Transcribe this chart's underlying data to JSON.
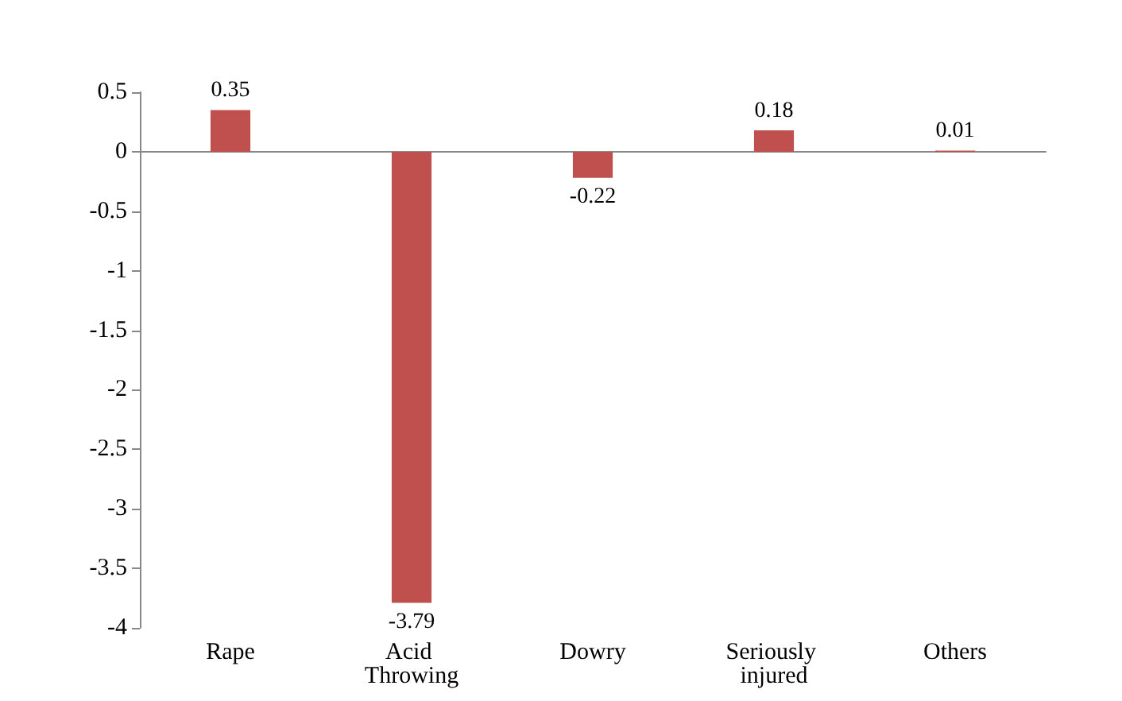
{
  "chart_data": {
    "type": "bar",
    "categories": [
      "Rape",
      "Acid Throwing",
      "Dowry",
      "Seriously injured",
      "Others"
    ],
    "values": [
      0.35,
      -3.79,
      -0.22,
      0.18,
      0.01
    ],
    "color": "#c0504d",
    "ylim": [
      -4,
      0.5
    ],
    "yticks": [
      -4,
      -3.5,
      -3,
      -2.5,
      -2,
      -1.5,
      -1,
      -0.5,
      0,
      0.5
    ],
    "data_labels": true
  }
}
